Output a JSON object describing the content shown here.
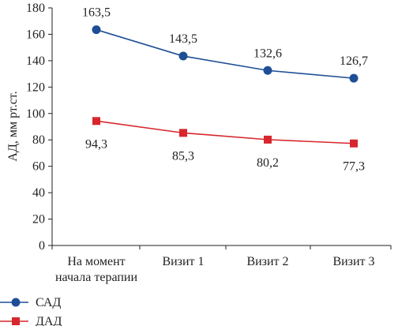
{
  "chart_data": {
    "type": "line",
    "categories": [
      "На момент\nначала терапии",
      "Визит 1",
      "Визит 2",
      "Визит 3"
    ],
    "series": [
      {
        "name": "САД",
        "values": [
          163.5,
          143.5,
          132.6,
          126.7
        ],
        "labels": [
          "163,5",
          "143,5",
          "132,6",
          "126,7"
        ],
        "color": "#1f4e96",
        "marker": "circle"
      },
      {
        "name": "ДАД",
        "values": [
          94.3,
          85.3,
          80.2,
          77.3
        ],
        "labels": [
          "94,3",
          "85,3",
          "80,2",
          "77,3"
        ],
        "color": "#d7262d",
        "marker": "square"
      }
    ],
    "ylabel": "АД, мм рт.ст.",
    "xlabel": "",
    "ylim": [
      0,
      180
    ],
    "yticks": [
      0,
      20,
      40,
      60,
      80,
      100,
      120,
      140,
      160,
      180
    ],
    "grid": false,
    "legend": "bottom-left"
  }
}
